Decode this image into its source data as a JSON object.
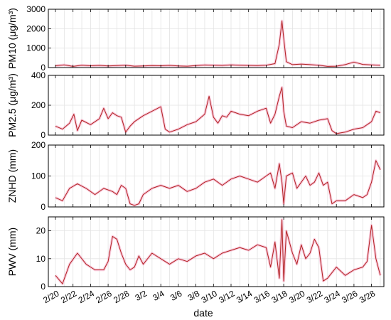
{
  "chart_data": {
    "type": "line",
    "xlabel": "date",
    "x_ticks": [
      "2/20",
      "2/22",
      "2/24",
      "2/26",
      "2/28",
      "3/2",
      "3/4",
      "3/6",
      "3/8",
      "3/10",
      "3/12",
      "3/14",
      "3/16",
      "3/18",
      "3/20",
      "3/22",
      "3/24",
      "3/26",
      "3/28"
    ],
    "x_range": [
      0,
      38
    ],
    "grid": true,
    "panels": [
      {
        "ylabel": "PM10 (μg/m³)",
        "ylim": [
          0,
          3000
        ],
        "yticks": [
          0,
          1000,
          2000,
          3000
        ],
        "x": [
          0,
          1,
          2,
          3,
          4,
          5,
          6,
          7,
          8,
          9,
          10,
          11,
          12,
          13,
          14,
          15,
          16,
          17,
          18,
          19,
          20,
          21,
          22,
          23,
          24,
          25,
          25.5,
          25.8,
          26,
          26.3,
          27,
          28,
          29,
          30,
          31,
          32,
          33,
          34,
          35,
          36,
          37
        ],
        "values": [
          90,
          140,
          60,
          120,
          90,
          110,
          80,
          100,
          120,
          70,
          80,
          100,
          90,
          110,
          80,
          70,
          100,
          130,
          120,
          110,
          140,
          120,
          110,
          100,
          120,
          200,
          1200,
          2400,
          1500,
          300,
          150,
          180,
          150,
          120,
          60,
          70,
          150,
          280,
          160,
          140,
          120
        ]
      },
      {
        "ylabel": "PM2.5 (μg/m³)",
        "ylim": [
          0,
          400
        ],
        "yticks": [
          0,
          200,
          400
        ],
        "x": [
          0,
          0.8,
          1.6,
          2.1,
          2.5,
          3,
          4,
          5,
          5.5,
          6,
          6.5,
          7,
          7.5,
          8,
          8.5,
          9,
          10,
          11,
          12,
          12.5,
          13,
          14,
          15,
          16,
          17,
          17.5,
          18,
          18.5,
          19,
          19.5,
          20,
          20.5,
          21,
          22,
          23,
          24,
          24.5,
          25,
          25.5,
          25.8,
          26,
          26.3,
          27,
          28,
          29,
          30,
          31,
          31.5,
          32,
          33,
          34,
          35,
          36,
          36.5,
          37
        ],
        "values": [
          60,
          40,
          80,
          140,
          30,
          100,
          70,
          110,
          180,
          110,
          150,
          130,
          120,
          20,
          60,
          90,
          130,
          160,
          190,
          40,
          20,
          40,
          70,
          90,
          140,
          260,
          120,
          80,
          130,
          120,
          160,
          150,
          140,
          130,
          160,
          180,
          80,
          140,
          260,
          320,
          160,
          60,
          50,
          90,
          80,
          100,
          110,
          30,
          10,
          20,
          40,
          50,
          90,
          160,
          150
        ]
      },
      {
        "ylabel": "ZNHD (mm)",
        "ylim": [
          0,
          200
        ],
        "yticks": [
          0,
          100,
          200
        ],
        "x": [
          0,
          0.8,
          1.6,
          2.5,
          3.5,
          4.5,
          5.5,
          6.5,
          7,
          7.5,
          8,
          8.5,
          9,
          9.5,
          10,
          11,
          12,
          13,
          14,
          15,
          16,
          17,
          18,
          19,
          20,
          21,
          22,
          23,
          24,
          24.5,
          25,
          25.5,
          25.8,
          26,
          26.3,
          27,
          27.5,
          28,
          28.5,
          29,
          29.5,
          30,
          30.5,
          31,
          31.5,
          32,
          33,
          34,
          35,
          35.5,
          36,
          36.5,
          37
        ],
        "values": [
          30,
          20,
          60,
          75,
          60,
          40,
          60,
          50,
          40,
          70,
          60,
          10,
          5,
          10,
          40,
          60,
          70,
          60,
          70,
          50,
          60,
          80,
          90,
          70,
          90,
          100,
          90,
          80,
          100,
          110,
          60,
          140,
          80,
          10,
          100,
          110,
          60,
          80,
          100,
          70,
          80,
          110,
          70,
          80,
          10,
          20,
          20,
          40,
          30,
          40,
          80,
          150,
          120
        ]
      },
      {
        "ylabel": "PWV (mm)",
        "ylim": [
          0,
          25
        ],
        "yticks": [
          0,
          10,
          20
        ],
        "x": [
          0,
          0.8,
          1.6,
          2.5,
          3.5,
          4.5,
          5.5,
          6,
          6.5,
          7,
          7.5,
          8,
          8.5,
          9,
          9.5,
          10,
          11,
          12,
          13,
          14,
          15,
          16,
          17,
          18,
          19,
          20,
          21,
          22,
          23,
          24,
          24.5,
          25,
          25.5,
          25.8,
          26,
          26.3,
          27,
          27.5,
          28,
          28.5,
          29,
          29.5,
          30,
          30.5,
          31,
          31.5,
          32,
          33,
          34,
          35,
          35.5,
          36,
          36.5,
          37
        ],
        "values": [
          4,
          1,
          8,
          12,
          8,
          6,
          6,
          9,
          18,
          17,
          12,
          8,
          6,
          7,
          11,
          8,
          12,
          10,
          8,
          10,
          9,
          11,
          12,
          10,
          12,
          13,
          14,
          13,
          15,
          14,
          7,
          16,
          3,
          24,
          2,
          20,
          12,
          8,
          15,
          10,
          12,
          17,
          14,
          2,
          3,
          5,
          7,
          4,
          6,
          7,
          9,
          22,
          10,
          4
        ]
      }
    ]
  }
}
